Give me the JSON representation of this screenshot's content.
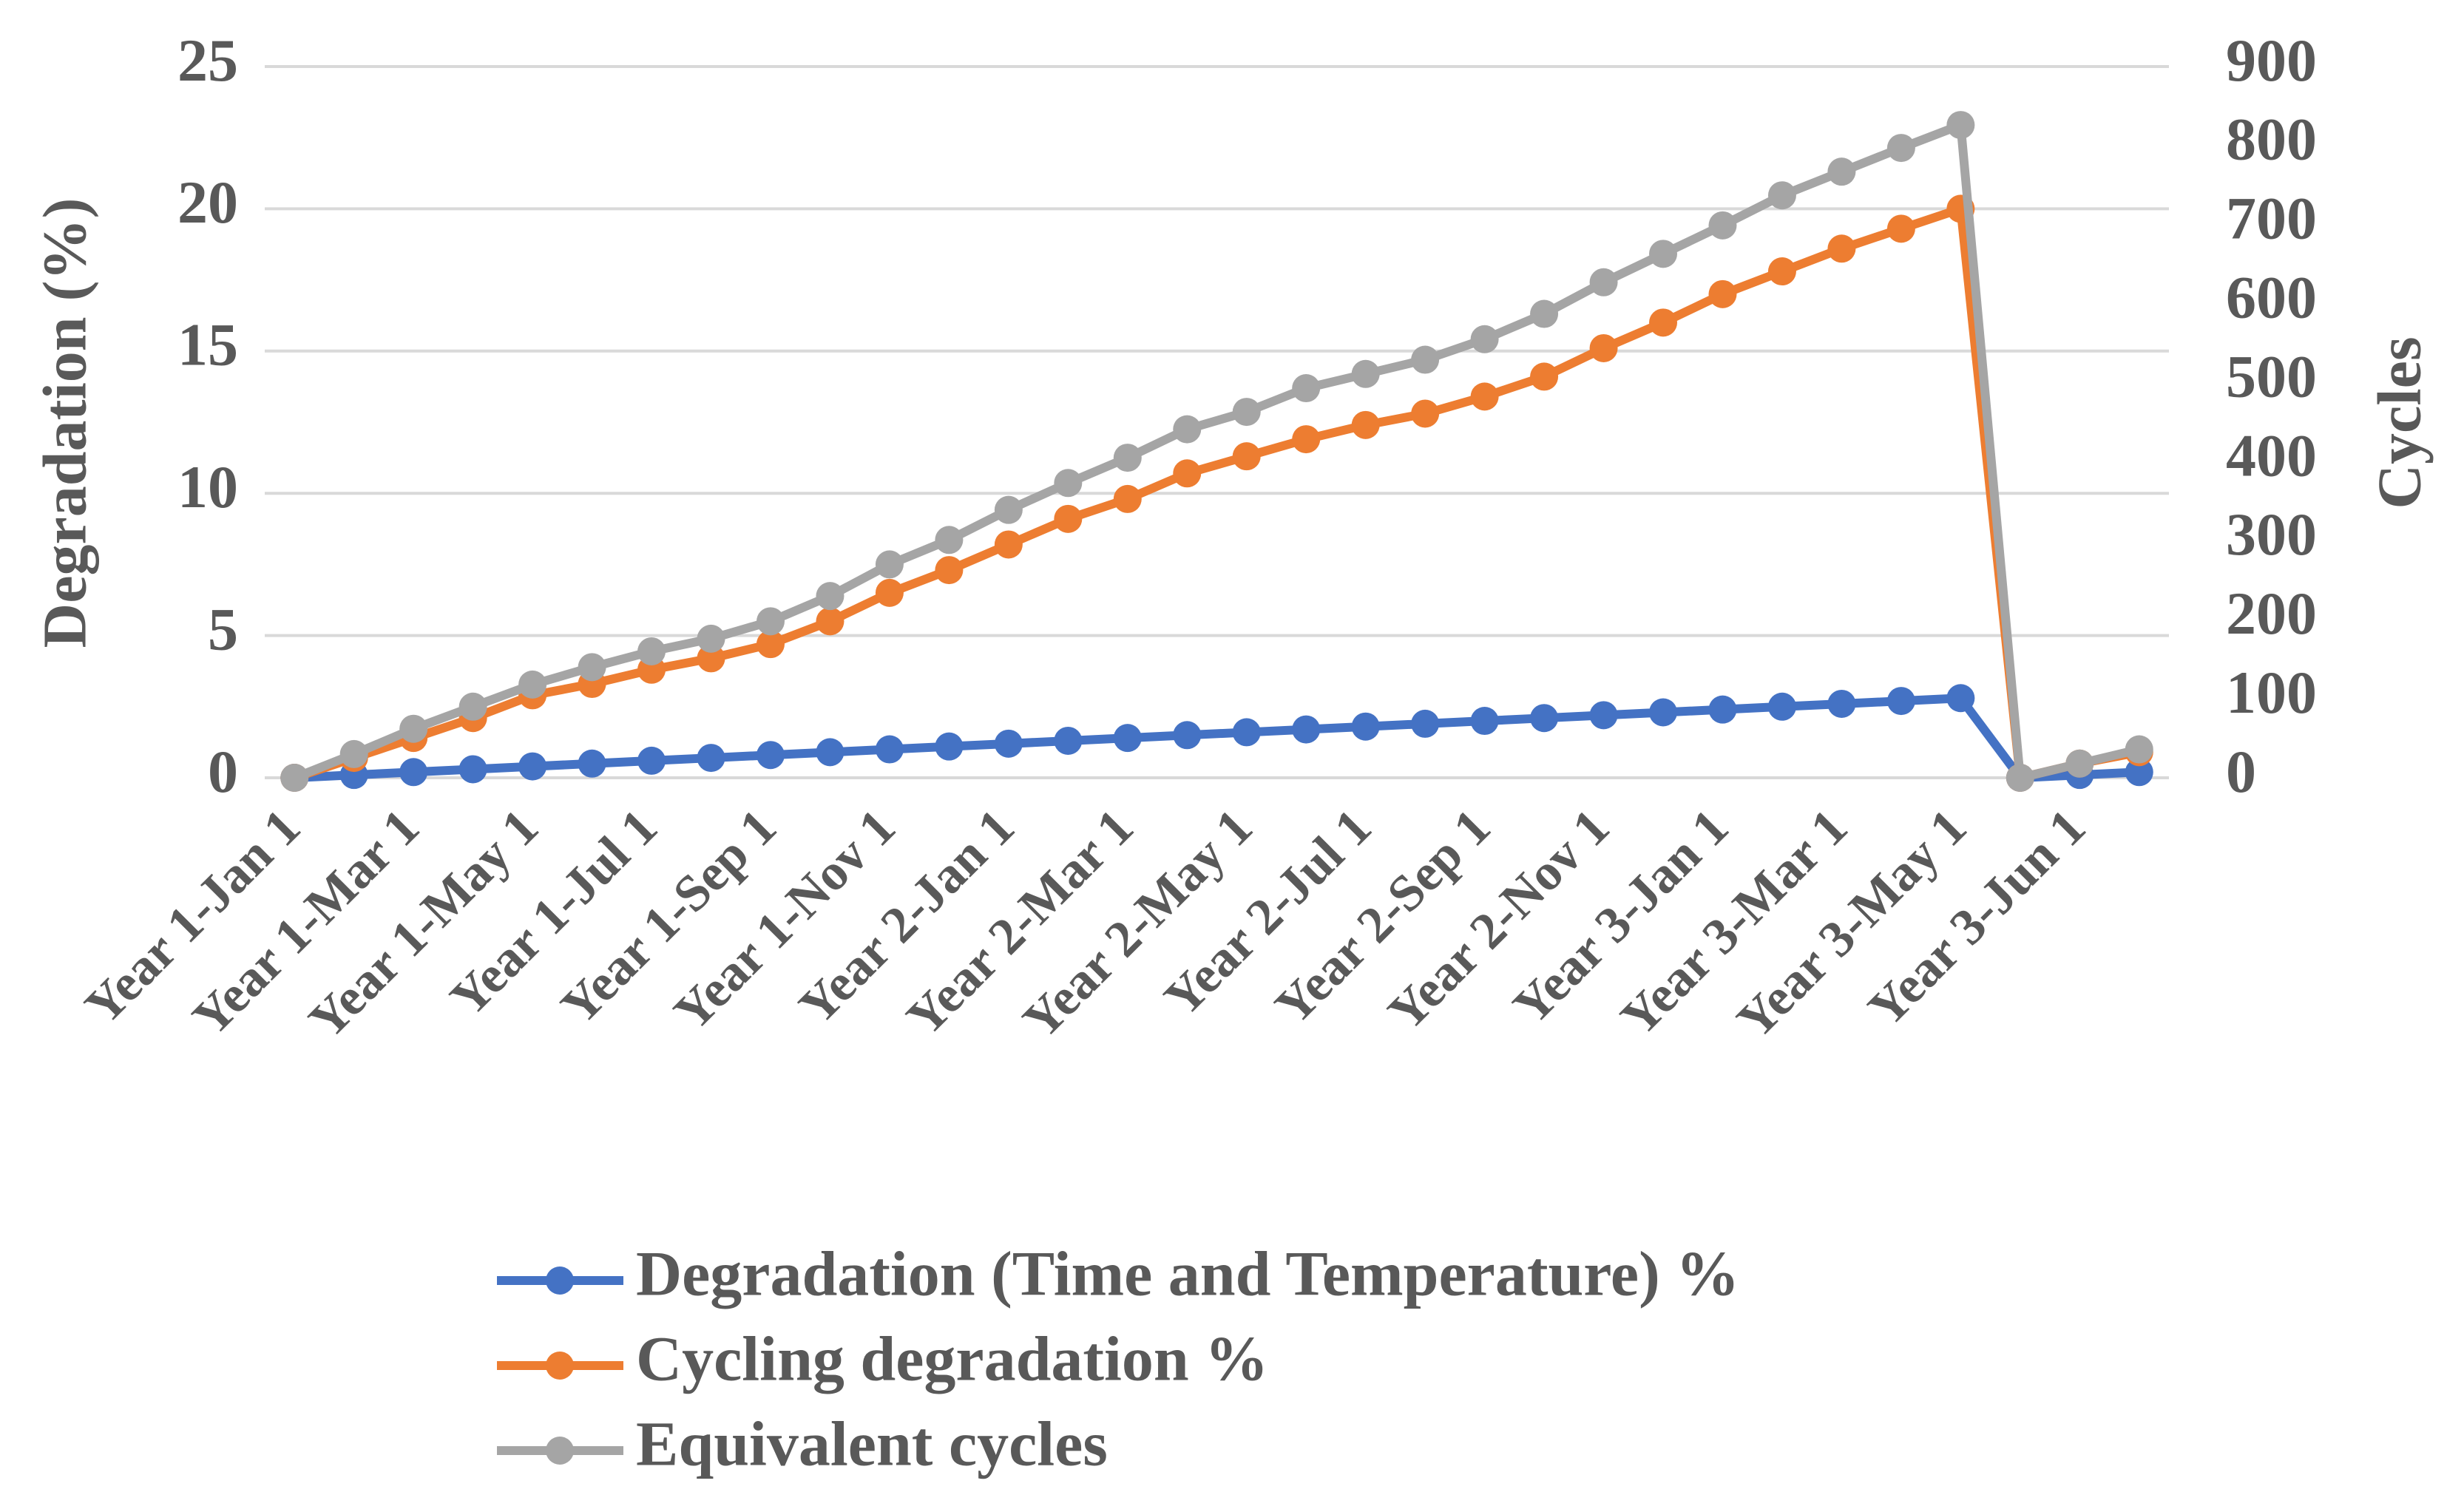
{
  "chart_data": {
    "type": "line",
    "categories": [
      "Year 1-Jan 1",
      null,
      "Year 1-Mar 1",
      null,
      "Year 1-May 1",
      null,
      "Year 1-Jul 1",
      null,
      "Year 1-Sep 1",
      null,
      "Year 1-Nov 1",
      null,
      "Year 2-Jan 1",
      null,
      "Year 2-Mar 1",
      null,
      "Year 2-May 1",
      null,
      "Year 2-Jul 1",
      null,
      "Year 2-Sep 1",
      null,
      "Year 2-Nov 1",
      null,
      "Year 3-Jan 1",
      null,
      "Year 3-Mar 1",
      null,
      "Year 3-May 1",
      null,
      "Year 3-Jun 1",
      null
    ],
    "y_label": "Degradation (%)",
    "y2_label": "Cycles",
    "ylim": [
      0,
      25
    ],
    "yticks": [
      0,
      5,
      10,
      15,
      20,
      25
    ],
    "y2lim": [
      0,
      900
    ],
    "y2ticks": [
      0,
      100,
      200,
      300,
      400,
      500,
      600,
      700,
      800,
      900
    ],
    "grid": true,
    "series": [
      {
        "name": "Degradation (Time and Temperature) %",
        "color": "#4472c4",
        "axis": "y",
        "values": [
          0,
          0.1,
          0.2,
          0.3,
          0.4,
          0.5,
          0.6,
          0.7,
          0.8,
          0.9,
          1.0,
          1.1,
          1.2,
          1.3,
          1.4,
          1.5,
          1.6,
          1.7,
          1.8,
          1.9,
          2.0,
          2.1,
          2.2,
          2.3,
          2.4,
          2.5,
          2.6,
          2.7,
          2.8,
          0,
          0.1,
          0.2
        ]
      },
      {
        "name": "Cycling degradation %",
        "color": "#ed7d31",
        "axis": "y",
        "values": [
          0,
          0.7,
          1.4,
          2.1,
          2.9,
          3.3,
          3.8,
          4.2,
          4.7,
          5.5,
          6.5,
          7.3,
          8.2,
          9.1,
          9.8,
          10.7,
          11.3,
          11.9,
          12.4,
          12.8,
          13.4,
          14.1,
          15.1,
          16.0,
          17.0,
          17.8,
          18.6,
          19.3,
          20.0,
          0,
          0.5,
          0.9
        ]
      },
      {
        "name": "Equivalent cycles",
        "color": "#a5a5a5",
        "axis": "y2",
        "values": [
          0,
          30,
          62,
          90,
          118,
          140,
          160,
          176,
          198,
          230,
          270,
          301,
          339,
          373,
          405,
          441,
          463,
          493,
          511,
          529,
          555,
          587,
          627,
          663,
          699,
          737,
          767,
          797,
          826,
          0,
          18,
          36
        ]
      }
    ]
  }
}
